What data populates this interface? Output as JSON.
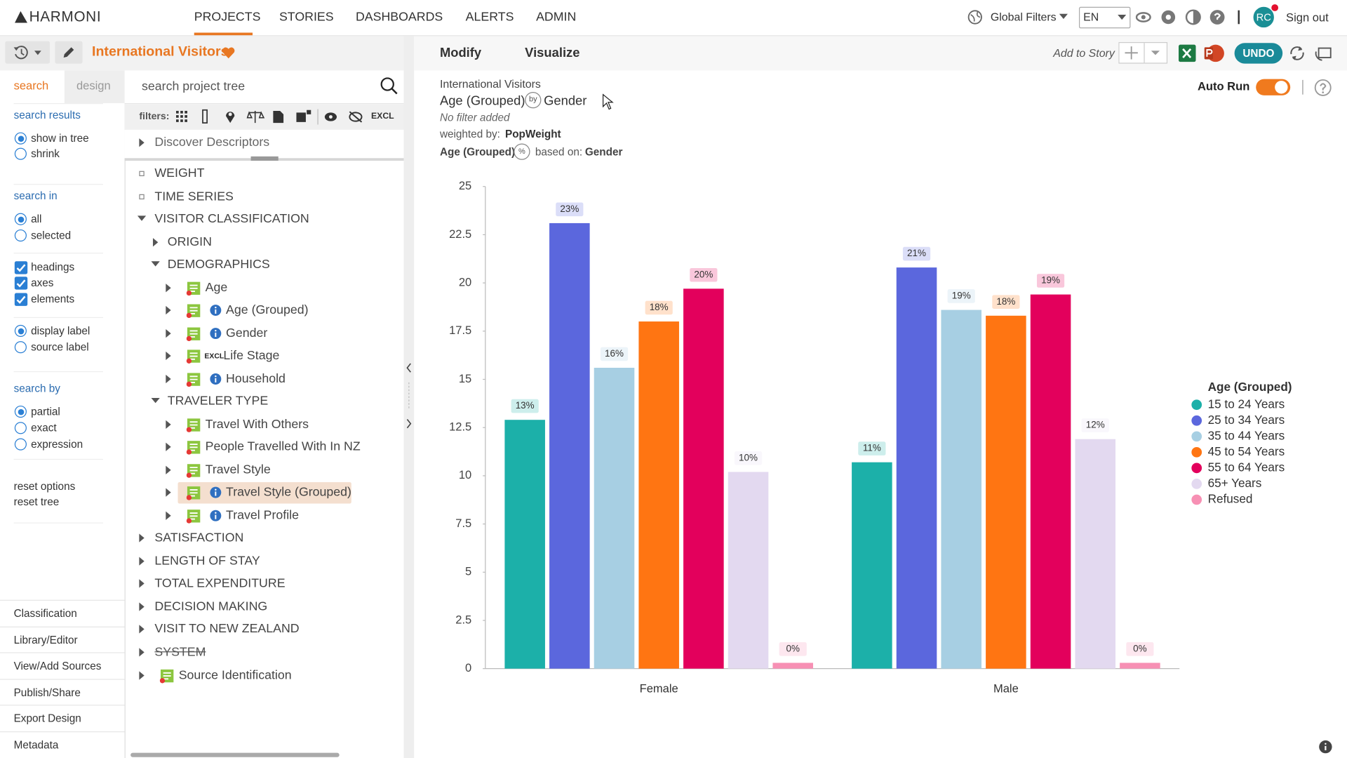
{
  "nav": {
    "brand": "HARMONI",
    "menu": [
      "PROJECTS",
      "STORIES",
      "DASHBOARDS",
      "ALERTS",
      "ADMIN"
    ],
    "global_filters": "Global Filters",
    "language": "EN",
    "avatar": "RC",
    "sign_out": "Sign out"
  },
  "project": {
    "title": "International Visitors"
  },
  "panel_tabs": [
    "search",
    "design"
  ],
  "search": {
    "placeholder": "search project tree",
    "filters_label": "filters:",
    "excl": "EXCL"
  },
  "options": {
    "groups": [
      {
        "title": "search results",
        "items": [
          "show in tree",
          "shrink"
        ]
      },
      {
        "title": "search in",
        "items": [
          "all",
          "selected"
        ]
      },
      {
        "items": [
          "headings",
          "axes",
          "elements"
        ]
      },
      {
        "items": [
          "display label",
          "source label"
        ]
      },
      {
        "title": "search by",
        "items": [
          "partial",
          "exact",
          "expression"
        ]
      }
    ],
    "links": [
      "reset options",
      "reset tree"
    ]
  },
  "footer_links": [
    "Classification",
    "Library/Editor",
    "View/Add Sources",
    "Publish/Share",
    "Export Design",
    "Metadata"
  ],
  "tree": {
    "excl_tag": "EXCL",
    "items": [
      "Discover Descriptors",
      "WEIGHT",
      "TIME SERIES",
      "VISITOR CLASSIFICATION",
      "ORIGIN",
      "DEMOGRAPHICS",
      "Age",
      "Age (Grouped)",
      "Gender",
      "Life Stage",
      "Household",
      "TRAVELER TYPE",
      "Travel With Others",
      "People Travelled With In NZ",
      "Travel Style",
      "Travel Style (Grouped)",
      "Travel Profile",
      "SATISFACTION",
      "LENGTH OF STAY",
      "TOTAL EXPENDITURE",
      "DECISION MAKING",
      "VISIT TO NEW ZEALAND",
      "SYSTEM",
      "Source Identification"
    ]
  },
  "toolbar": {
    "tabs": [
      "Modify",
      "Visualize"
    ],
    "add_to_story": "Add to Story",
    "undo": "UNDO"
  },
  "report": {
    "title": "International Visitors",
    "rows": "Age (Grouped)",
    "by": "by",
    "columns": "Gender",
    "filter": "No filter added",
    "weighted_label": "weighted by:",
    "weight": "PopWeight",
    "percent_rows": "Age (Grouped)",
    "percent_sign": "%",
    "based_label": "based on:",
    "based_on": "Gender",
    "auto_run": "Auto Run"
  },
  "chart_data": {
    "type": "bar",
    "categories": [
      "Female",
      "Male"
    ],
    "series": [
      {
        "name": "15 to 24 Years",
        "color": "#1cb0a9",
        "values": [
          12.9,
          10.7
        ],
        "value_labels": [
          "13%",
          "11%"
        ]
      },
      {
        "name": "25 to 34 Years",
        "color": "#5b67dd",
        "values": [
          23.1,
          20.8
        ],
        "value_labels": [
          "23%",
          "21%"
        ]
      },
      {
        "name": "35 to 44 Years",
        "color": "#a7cfe3",
        "values": [
          15.6,
          18.6
        ],
        "value_labels": [
          "16%",
          "19%"
        ]
      },
      {
        "name": "45 to 54 Years",
        "color": "#ff7512",
        "values": [
          18.0,
          18.3
        ],
        "value_labels": [
          "18%",
          "18%"
        ]
      },
      {
        "name": "55 to 64 Years",
        "color": "#e3005c",
        "values": [
          19.7,
          19.4
        ],
        "value_labels": [
          "20%",
          "19%"
        ]
      },
      {
        "name": "65+ Years",
        "color": "#e3d9f0",
        "values": [
          10.2,
          11.9
        ],
        "value_labels": [
          "10%",
          "12%"
        ]
      },
      {
        "name": "Refused",
        "color": "#f790b4",
        "values": [
          0.3,
          0.3
        ],
        "value_labels": [
          "0%",
          "0%"
        ]
      }
    ],
    "ylim": [
      0,
      25
    ],
    "yticks": [
      0,
      2.5,
      5,
      7.5,
      10,
      12.5,
      15,
      17.5,
      20,
      22.5,
      25
    ],
    "legend_title": "Age (Grouped)",
    "legend": "right",
    "grid": false
  }
}
